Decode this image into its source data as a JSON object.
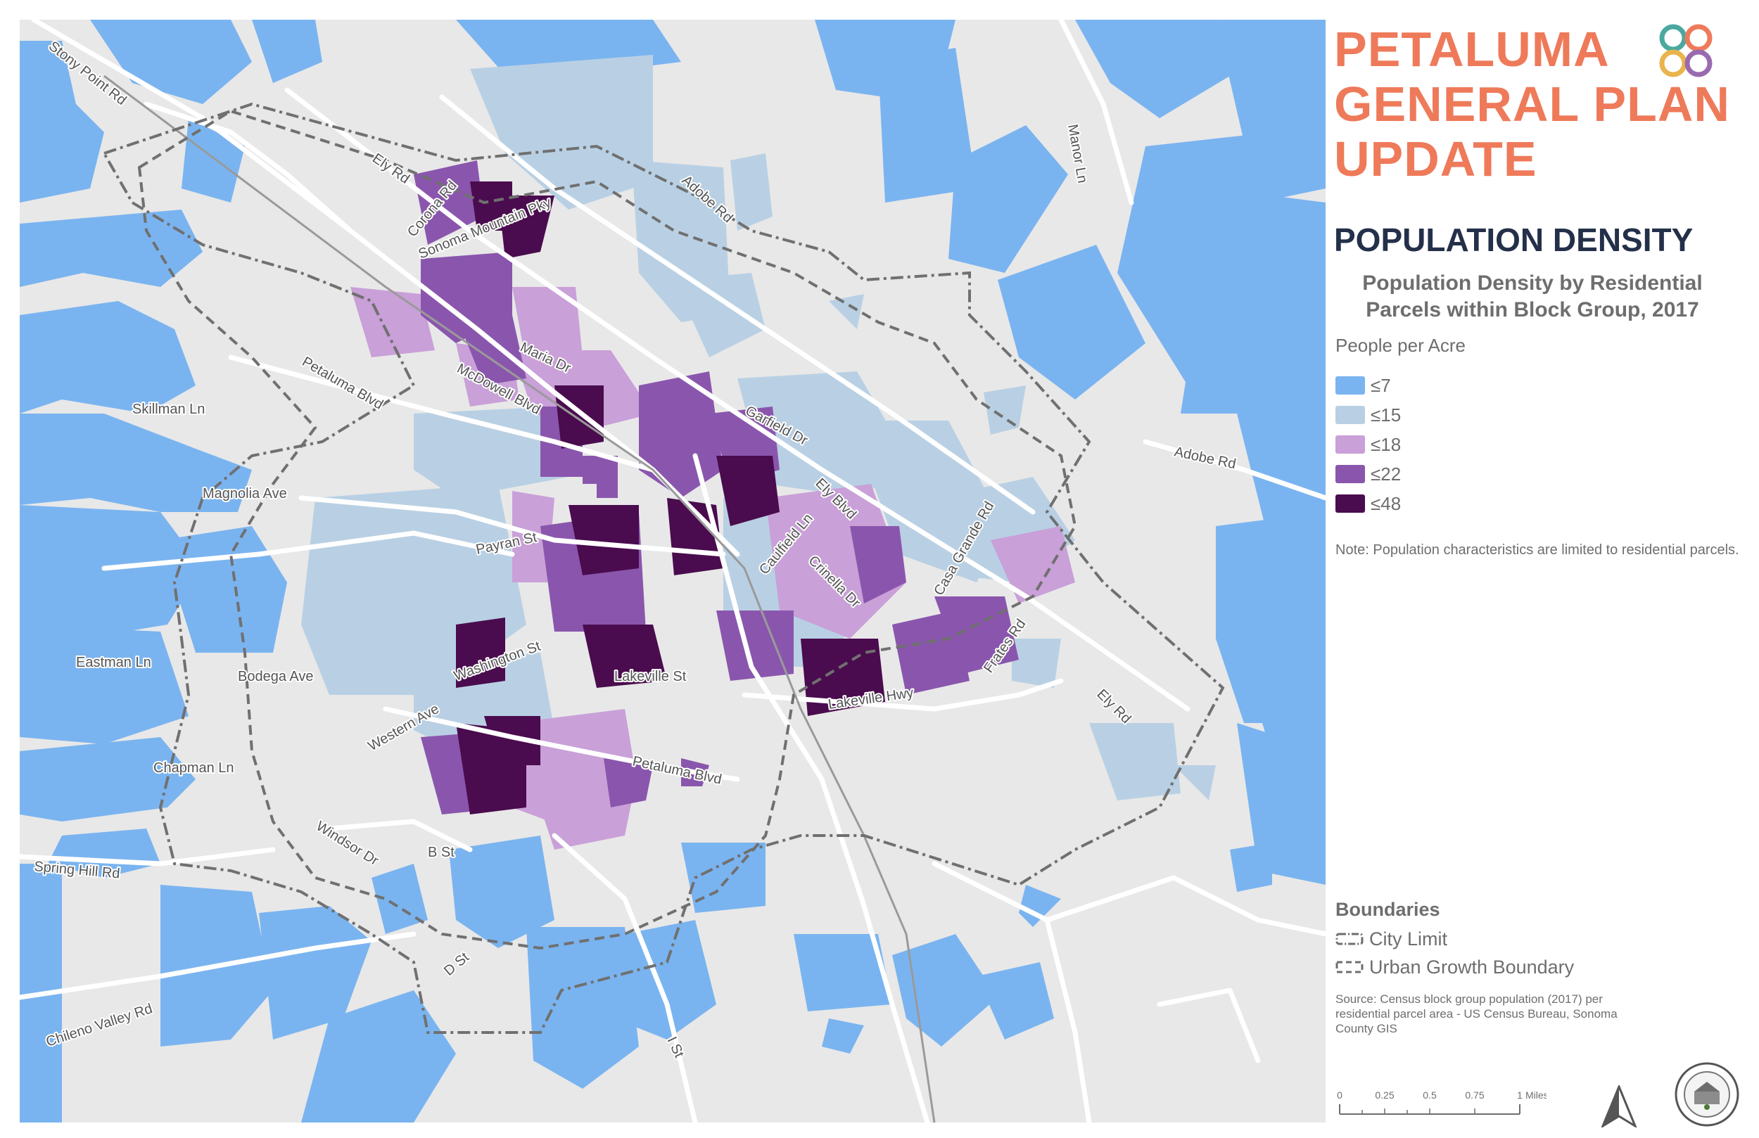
{
  "title_lines": [
    "PETALUMA",
    "GENERAL PLAN",
    "UPDATE"
  ],
  "subtitle": "POPULATION DENSITY",
  "map_title": "Population Density by Residential Parcels within Block Group, 2017",
  "legend": {
    "title": "People per Acre",
    "items": [
      {
        "label": "≤7",
        "color": "#7ab4f0"
      },
      {
        "label": "≤15",
        "color": "#b9d0e4"
      },
      {
        "label": "≤18",
        "color": "#c9a0d8"
      },
      {
        "label": "≤22",
        "color": "#8a56ad"
      },
      {
        "label": "≤48",
        "color": "#4a0c4e"
      }
    ]
  },
  "note": "Note: Population characteristics are limited to residential parcels.",
  "boundaries": {
    "title": "Boundaries",
    "items": [
      {
        "label": "City Limit",
        "style": "dash-dot"
      },
      {
        "label": "Urban Growth Boundary",
        "style": "dashed"
      }
    ]
  },
  "source": "Source: Census block group population (2017) per residential parcel area - US Census Bureau, Sonoma County GIS",
  "scale": {
    "ticks": [
      "0",
      "0.25",
      "0.5",
      "0.75",
      "1"
    ],
    "unit": "Miles"
  },
  "road_labels": [
    "Stony Point Rd",
    "Ely Rd",
    "Corona Rd",
    "Adobe Rd",
    "Manor Ln",
    "Sonoma Mountain Pky",
    "Maria Dr",
    "McDowell Blvd",
    "Petaluma Blvd",
    "Skillman Ln",
    "Garfield Dr",
    "Adobe Rd",
    "Ely Blvd",
    "Magnolia Ave",
    "Caulfield Ln",
    "Crinella Dr",
    "Casa Grande Rd",
    "Payran St",
    "Eastman Ln",
    "Bodega Ave",
    "Washington St",
    "Lakeville St",
    "Frates Rd",
    "Lakeville Hwy",
    "Ely Rd",
    "Western Ave",
    "Chapman Ln",
    "Petaluma Blvd",
    "Windsor Dr",
    "B St",
    "Spring Hill Rd",
    "D St",
    "Chileno Valley Rd",
    "I St"
  ],
  "icons": {
    "logo": "quatrefoil-logo-icon",
    "north": "north-arrow-icon",
    "seal": "city-seal-icon"
  }
}
